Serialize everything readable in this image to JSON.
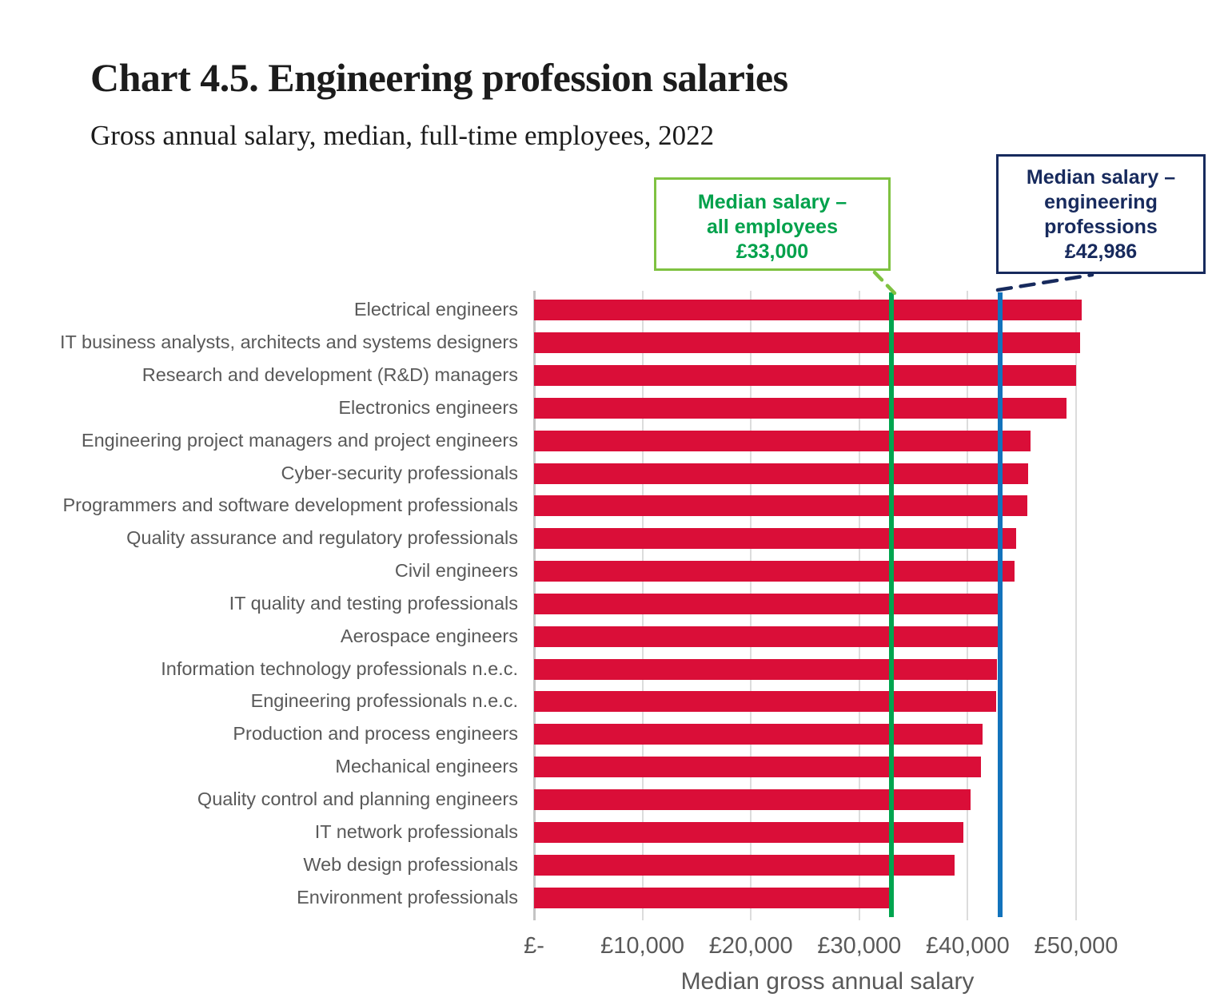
{
  "title": "Chart 4.5. Engineering profession salaries",
  "subtitle": "Gross annual salary, median, full-time employees, 2022",
  "chart_data": {
    "type": "bar",
    "orientation": "horizontal",
    "title": "Chart 4.5. Engineering profession salaries",
    "subtitle": "Gross annual salary, median, full-time employees, 2022",
    "xlabel": "Median gross annual salary",
    "x_ticks": [
      "£-",
      "£10,000",
      "£20,000",
      "£30,000",
      "£40,000",
      "£50,000"
    ],
    "x_tick_values": [
      0,
      10000,
      20000,
      30000,
      40000,
      50000
    ],
    "xlim": [
      0,
      50000
    ],
    "grid": "vertical",
    "legend": "none",
    "categories": [
      "Electrical engineers",
      "IT business analysts, architects and systems designers",
      "Research and development (R&D) managers",
      "Electronics engineers",
      "Engineering project managers and project engineers",
      "Cyber-security professionals",
      "Programmers and software development professionals",
      "Quality assurance and regulatory professionals",
      "Civil engineers",
      "IT quality and testing professionals",
      "Aerospace engineers",
      "Information technology professionals n.e.c.",
      "Engineering professionals n.e.c.",
      "Production and process engineers",
      "Mechanical engineers",
      "Quality control and planning engineers",
      "IT network professionals",
      "Web design professionals",
      "Environment professionals"
    ],
    "values": [
      50500,
      50400,
      50000,
      49100,
      45800,
      45600,
      45500,
      44500,
      44300,
      43000,
      42800,
      42700,
      42600,
      41400,
      41200,
      40300,
      39600,
      38800,
      33000
    ],
    "annotations": [
      {
        "name": "median_all_employees",
        "value": 33000,
        "label": "Median salary –\nall employees\n£33,000"
      },
      {
        "name": "median_engineering_professions",
        "value": 42986,
        "label": "Median salary –\nengineering\nprofessions\n£42,986"
      }
    ]
  },
  "callouts": {
    "all_employees": "Median salary –\nall employees\n£33,000",
    "engineering": "Median salary –\nengineering\nprofessions\n£42,986"
  },
  "colors": {
    "bar": "#DA0E38",
    "median_all_line": "#00A54F",
    "callout_green_border": "#7FC241",
    "callout_green_text": "#00A14B",
    "median_eng_line": "#1273BC",
    "navy": "#172A5D",
    "gridline": "#DCDCDC",
    "axis_line": "#C4C4C4",
    "label_text": "#595959",
    "title_text": "#1C1C1C"
  }
}
